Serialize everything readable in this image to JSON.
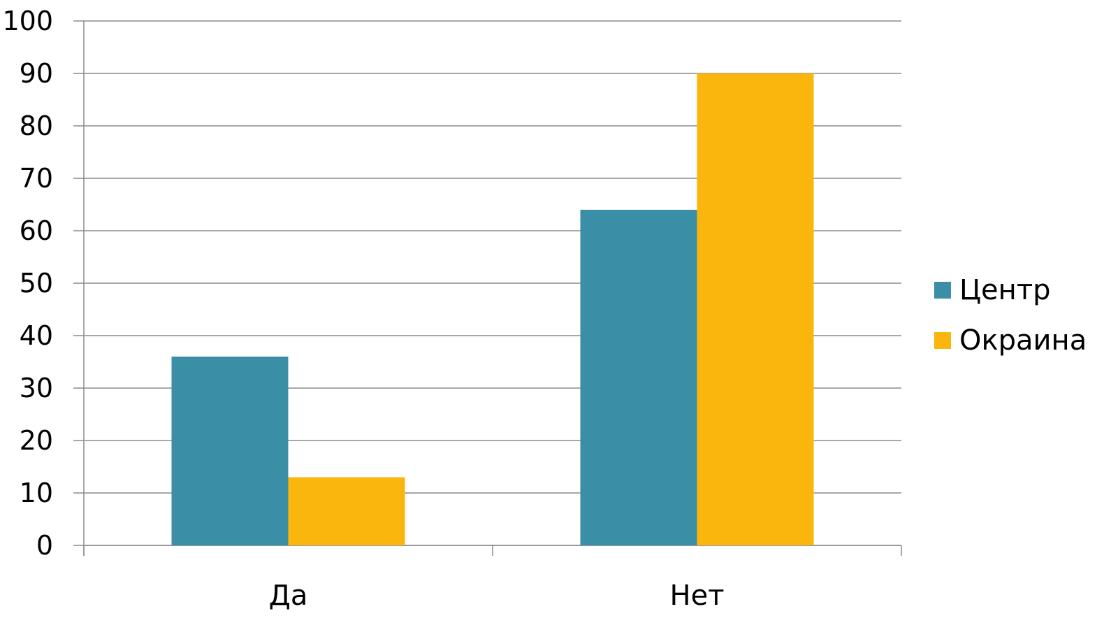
{
  "chart_data": {
    "type": "bar",
    "title": "",
    "xlabel": "",
    "ylabel": "",
    "categories": [
      "Да",
      "Нет"
    ],
    "series": [
      {
        "name": "Центр",
        "color": "#3a8fa6",
        "values": [
          36,
          64
        ]
      },
      {
        "name": "Окраина",
        "color": "#fbb60e",
        "values": [
          13,
          90
        ]
      }
    ],
    "ylim": [
      0,
      100
    ],
    "yticks": [
      0,
      10,
      20,
      30,
      40,
      50,
      60,
      70,
      80,
      90,
      100
    ],
    "grid": true,
    "legend_position": "right"
  }
}
